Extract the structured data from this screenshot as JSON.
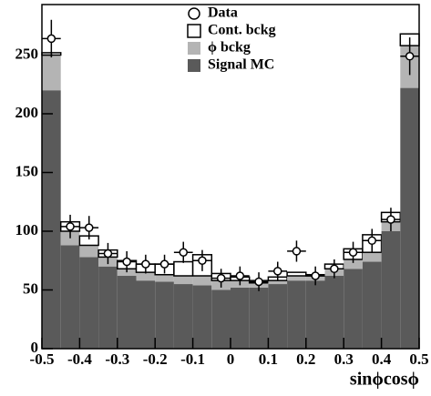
{
  "chart_data": {
    "type": "histogram",
    "x_label": "sinϕcosϕ",
    "bins": [
      -0.5,
      -0.45,
      -0.4,
      -0.35,
      -0.3,
      -0.25,
      -0.2,
      -0.15,
      -0.1,
      -0.05,
      0,
      0.05,
      0.1,
      0.15,
      0.2,
      0.25,
      0.3,
      0.35,
      0.4,
      0.45,
      0.5
    ],
    "series": [
      {
        "name": "Signal MC",
        "color": "#5a5a5a",
        "values": [
          220,
          88,
          78,
          70,
          62,
          58,
          57,
          55,
          54,
          50,
          52,
          52,
          55,
          58,
          58,
          62,
          68,
          74,
          100,
          222
        ]
      },
      {
        "name": "ϕ bckg",
        "color": "#b4b4b4",
        "values": [
          30,
          12,
          10,
          8,
          6,
          7,
          6,
          7,
          8,
          8,
          6,
          4,
          3,
          4,
          4,
          6,
          8,
          8,
          8,
          36
        ]
      },
      {
        "name": "Cont. bckg",
        "color": "#ffffff",
        "values": [
          2,
          8,
          8,
          6,
          7,
          7,
          9,
          12,
          18,
          6,
          3,
          2,
          3,
          3,
          1,
          4,
          9,
          15,
          8,
          10
        ]
      }
    ],
    "data": {
      "name": "Data",
      "values": [
        264,
        104,
        103,
        81,
        74,
        72,
        72,
        82,
        75,
        60,
        62,
        57,
        66,
        83,
        62,
        68,
        82,
        92,
        110,
        249
      ],
      "errors": [
        16,
        10,
        10,
        9,
        9,
        8,
        8,
        9,
        9,
        8,
        8,
        8,
        8,
        9,
        8,
        8,
        9,
        10,
        10,
        16
      ]
    },
    "xlim": [
      -0.5,
      0.5
    ],
    "xticks": [
      -0.5,
      -0.4,
      -0.3,
      -0.2,
      -0.1,
      0,
      0.1,
      0.2,
      0.3,
      0.4,
      0.5
    ],
    "ylim": [
      0,
      293
    ],
    "yticks": [
      0,
      50,
      100,
      150,
      200,
      250
    ]
  }
}
